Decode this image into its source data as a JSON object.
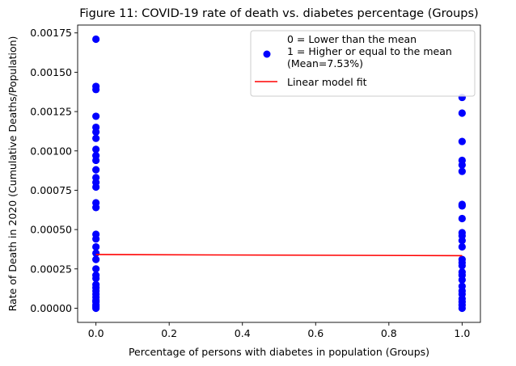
{
  "chart_data": {
    "type": "scatter",
    "title": "Figure 11: COVID-19 rate of death vs. diabetes percentage (Groups)",
    "xlabel": "Percentage of persons with diabetes in population (Groups)",
    "ylabel": "Rate of Death in 2020 (Cumulative Deaths/Population)",
    "xlim": [
      -0.05,
      1.05
    ],
    "ylim": [
      -9e-05,
      0.0018
    ],
    "x_ticks": [
      0.0,
      0.2,
      0.4,
      0.6,
      0.8,
      1.0
    ],
    "x_tick_labels": [
      "0.0",
      "0.2",
      "0.4",
      "0.6",
      "0.8",
      "1.0"
    ],
    "y_ticks": [
      0.0,
      0.00025,
      0.0005,
      0.00075,
      0.001,
      0.00125,
      0.0015,
      0.00175
    ],
    "y_tick_labels": [
      "0.00000",
      "0.00025",
      "0.00050",
      "0.00075",
      "0.00100",
      "0.00125",
      "0.00150",
      "0.00175"
    ],
    "grid": false,
    "legend_position": "upper-right",
    "series": [
      {
        "name": "0 = Lower than the mean\n1 = Higher or equal to the mean\n(Mean=7.53%)",
        "kind": "scatter",
        "color": "#0000ff",
        "points": [
          [
            0,
            0.00171
          ],
          [
            0,
            0.00141
          ],
          [
            0,
            0.00139
          ],
          [
            0,
            0.00122
          ],
          [
            0,
            0.00115
          ],
          [
            0,
            0.00112
          ],
          [
            0,
            0.00108
          ],
          [
            0,
            0.00101
          ],
          [
            0,
            0.00097
          ],
          [
            0,
            0.00094
          ],
          [
            0,
            0.00088
          ],
          [
            0,
            0.00083
          ],
          [
            0,
            0.0008
          ],
          [
            0,
            0.00077
          ],
          [
            0,
            0.00067
          ],
          [
            0,
            0.00064
          ],
          [
            0,
            0.00047
          ],
          [
            0,
            0.00044
          ],
          [
            0,
            0.00039
          ],
          [
            0,
            0.00035
          ],
          [
            0,
            0.00031
          ],
          [
            0,
            0.00025
          ],
          [
            0,
            0.00021
          ],
          [
            0,
            0.00019
          ],
          [
            0,
            0.00015
          ],
          [
            0,
            0.00013
          ],
          [
            0,
            0.00011
          ],
          [
            0,
            9e-05
          ],
          [
            0,
            7e-05
          ],
          [
            0,
            5e-05
          ],
          [
            0,
            4e-05
          ],
          [
            0,
            2e-05
          ],
          [
            0,
            1e-05
          ],
          [
            0,
            0.0
          ],
          [
            1,
            0.00134
          ],
          [
            1,
            0.00124
          ],
          [
            1,
            0.00106
          ],
          [
            1,
            0.00094
          ],
          [
            1,
            0.00091
          ],
          [
            1,
            0.00087
          ],
          [
            1,
            0.00066
          ],
          [
            1,
            0.00065
          ],
          [
            1,
            0.00057
          ],
          [
            1,
            0.00048
          ],
          [
            1,
            0.00046
          ],
          [
            1,
            0.00043
          ],
          [
            1,
            0.00039
          ],
          [
            1,
            0.00031
          ],
          [
            1,
            0.00029
          ],
          [
            1,
            0.00027
          ],
          [
            1,
            0.00023
          ],
          [
            1,
            0.00021
          ],
          [
            1,
            0.00018
          ],
          [
            1,
            0.00014
          ],
          [
            1,
            0.00011
          ],
          [
            1,
            9e-05
          ],
          [
            1,
            6e-05
          ],
          [
            1,
            4e-05
          ],
          [
            1,
            2e-05
          ],
          [
            1,
            0.0
          ]
        ]
      },
      {
        "name": "Linear model fit",
        "kind": "line",
        "color": "#ff0000",
        "points": [
          [
            0,
            0.000341
          ],
          [
            1,
            0.000334
          ]
        ]
      }
    ]
  }
}
